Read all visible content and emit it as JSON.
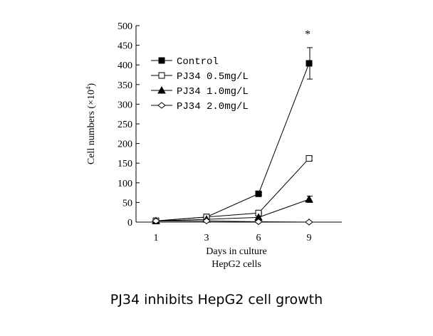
{
  "caption": "PJ34 inhibits HepG2 cell growth",
  "chart_data": {
    "type": "line",
    "title": "",
    "xlabel": "Days in culture",
    "xlabel2": "HepG2 cells",
    "ylabel_main": "Cell numbers (×10",
    "ylabel_sup": "4",
    "ylabel_end": ")",
    "ylim": [
      0,
      500
    ],
    "yticks": [
      "0",
      "50",
      "100",
      "150",
      "200",
      "250",
      "300",
      "350",
      "400",
      "450",
      "500"
    ],
    "x": [
      "1",
      "3",
      "6",
      "9"
    ],
    "x_values": [
      1,
      3,
      6,
      9
    ],
    "annotation": "*",
    "legend_position": "upper-left",
    "series": [
      {
        "name": "Control",
        "marker": "filled-square",
        "values": [
          3,
          13,
          72,
          404
        ],
        "error": [
          0,
          0,
          3,
          40
        ]
      },
      {
        "name": "PJ34 0.5mg/L",
        "marker": "open-square",
        "values": [
          3,
          13,
          23,
          162
        ],
        "error": [
          0,
          0,
          2,
          5
        ]
      },
      {
        "name": "PJ34 1.0mg/L",
        "marker": "filled-triangle",
        "values": [
          3,
          7,
          12,
          58
        ],
        "error": [
          0,
          0,
          0,
          8
        ]
      },
      {
        "name": "PJ34 2.0mg/L",
        "marker": "open-diamond",
        "values": [
          3,
          3,
          1,
          0
        ],
        "error": [
          0,
          0,
          0,
          0
        ]
      }
    ]
  }
}
